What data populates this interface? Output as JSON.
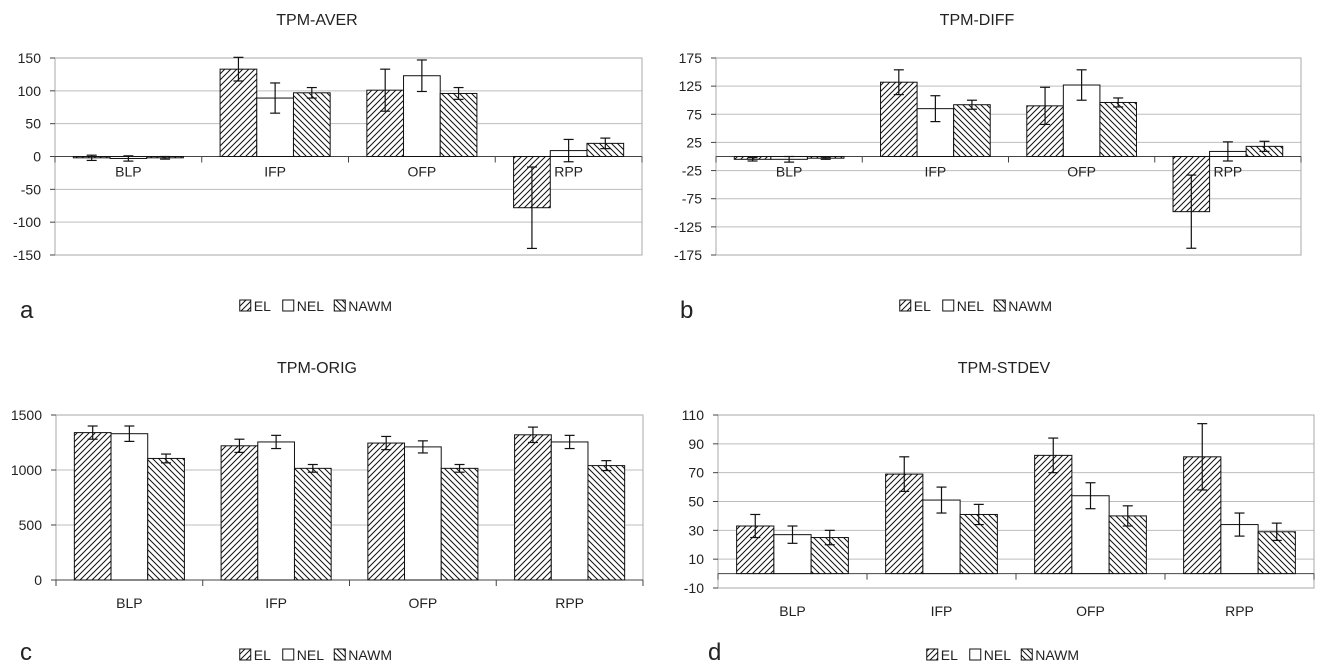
{
  "legend": {
    "items": [
      {
        "label": "EL",
        "pattern": "fwd"
      },
      {
        "label": "NEL",
        "pattern": "none"
      },
      {
        "label": "NAWM",
        "pattern": "back"
      }
    ]
  },
  "chart_data": [
    {
      "type": "bar",
      "panel_label": "a",
      "title": "TPM-AVER",
      "categories": [
        "BLP",
        "IFP",
        "OFP",
        "RPP"
      ],
      "series": [
        {
          "name": "EL",
          "values": [
            -2,
            133,
            101,
            -78
          ],
          "errors": [
            4,
            18,
            32,
            62
          ]
        },
        {
          "name": "NEL",
          "values": [
            -3,
            89,
            123,
            9
          ],
          "errors": [
            4,
            23,
            24,
            17
          ]
        },
        {
          "name": "NAWM",
          "values": [
            -2,
            97,
            96,
            20
          ],
          "errors": [
            2,
            8,
            9,
            8
          ]
        }
      ],
      "ylim": [
        -150,
        150
      ],
      "yticks": [
        -150,
        -100,
        -50,
        0,
        50,
        100,
        150
      ],
      "ytick_labels": [
        "-150",
        "-100",
        "-50",
        "0",
        "50",
        "100",
        "150"
      ],
      "category_labels_at_zero": true,
      "grid": true,
      "legend_position": "bottom"
    },
    {
      "type": "bar",
      "panel_label": "b",
      "title": "TPM-DIFF",
      "categories": [
        "BLP",
        "IFP",
        "OFP",
        "RPP"
      ],
      "series": [
        {
          "name": "EL",
          "values": [
            -5,
            132,
            90,
            -98
          ],
          "errors": [
            3,
            22,
            33,
            65
          ]
        },
        {
          "name": "NEL",
          "values": [
            -5,
            85,
            127,
            9
          ],
          "errors": [
            5,
            23,
            27,
            17
          ]
        },
        {
          "name": "NAWM",
          "values": [
            -3,
            92,
            96,
            18
          ],
          "errors": [
            2,
            8,
            8,
            9
          ]
        }
      ],
      "ylim": [
        -175,
        175
      ],
      "yticks": [
        -175,
        -125,
        -75,
        -25,
        25,
        75,
        125,
        175
      ],
      "ytick_labels": [
        "-175",
        "-125",
        "-75",
        "-25",
        "25",
        "75",
        "125",
        "175"
      ],
      "category_labels_at_zero": true,
      "grid": true,
      "legend_position": "bottom"
    },
    {
      "type": "bar",
      "panel_label": "c",
      "title": "TPM-ORIG",
      "categories": [
        "BLP",
        "IFP",
        "OFP",
        "RPP"
      ],
      "series": [
        {
          "name": "EL",
          "values": [
            1340,
            1220,
            1245,
            1320
          ],
          "errors": [
            60,
            60,
            60,
            70
          ]
        },
        {
          "name": "NEL",
          "values": [
            1330,
            1255,
            1210,
            1255
          ],
          "errors": [
            70,
            60,
            55,
            60
          ]
        },
        {
          "name": "NAWM",
          "values": [
            1105,
            1015,
            1015,
            1040
          ],
          "errors": [
            40,
            35,
            35,
            45
          ]
        }
      ],
      "ylim": [
        0,
        1500
      ],
      "yticks": [
        0,
        500,
        1000,
        1500
      ],
      "ytick_labels": [
        "0",
        "500",
        "1000",
        "1500"
      ],
      "category_labels_at_zero": false,
      "grid": true,
      "legend_position": "bottom"
    },
    {
      "type": "bar",
      "panel_label": "d",
      "title": "TPM-STDEV",
      "categories": [
        "BLP",
        "IFP",
        "OFP",
        "RPP"
      ],
      "series": [
        {
          "name": "EL",
          "values": [
            33,
            69,
            82,
            81
          ],
          "errors": [
            8,
            12,
            12,
            23
          ]
        },
        {
          "name": "NEL",
          "values": [
            27,
            51,
            54,
            34
          ],
          "errors": [
            6,
            9,
            9,
            8
          ]
        },
        {
          "name": "NAWM",
          "values": [
            25,
            41,
            40,
            29
          ],
          "errors": [
            5,
            7,
            7,
            6
          ]
        }
      ],
      "ylim": [
        -10,
        110
      ],
      "yticks": [
        -10,
        10,
        30,
        50,
        70,
        90,
        110
      ],
      "ytick_labels": [
        "-10",
        "10",
        "30",
        "50",
        "70",
        "90",
        "110"
      ],
      "category_labels_at_zero": false,
      "grid": true,
      "legend_position": "bottom"
    }
  ]
}
